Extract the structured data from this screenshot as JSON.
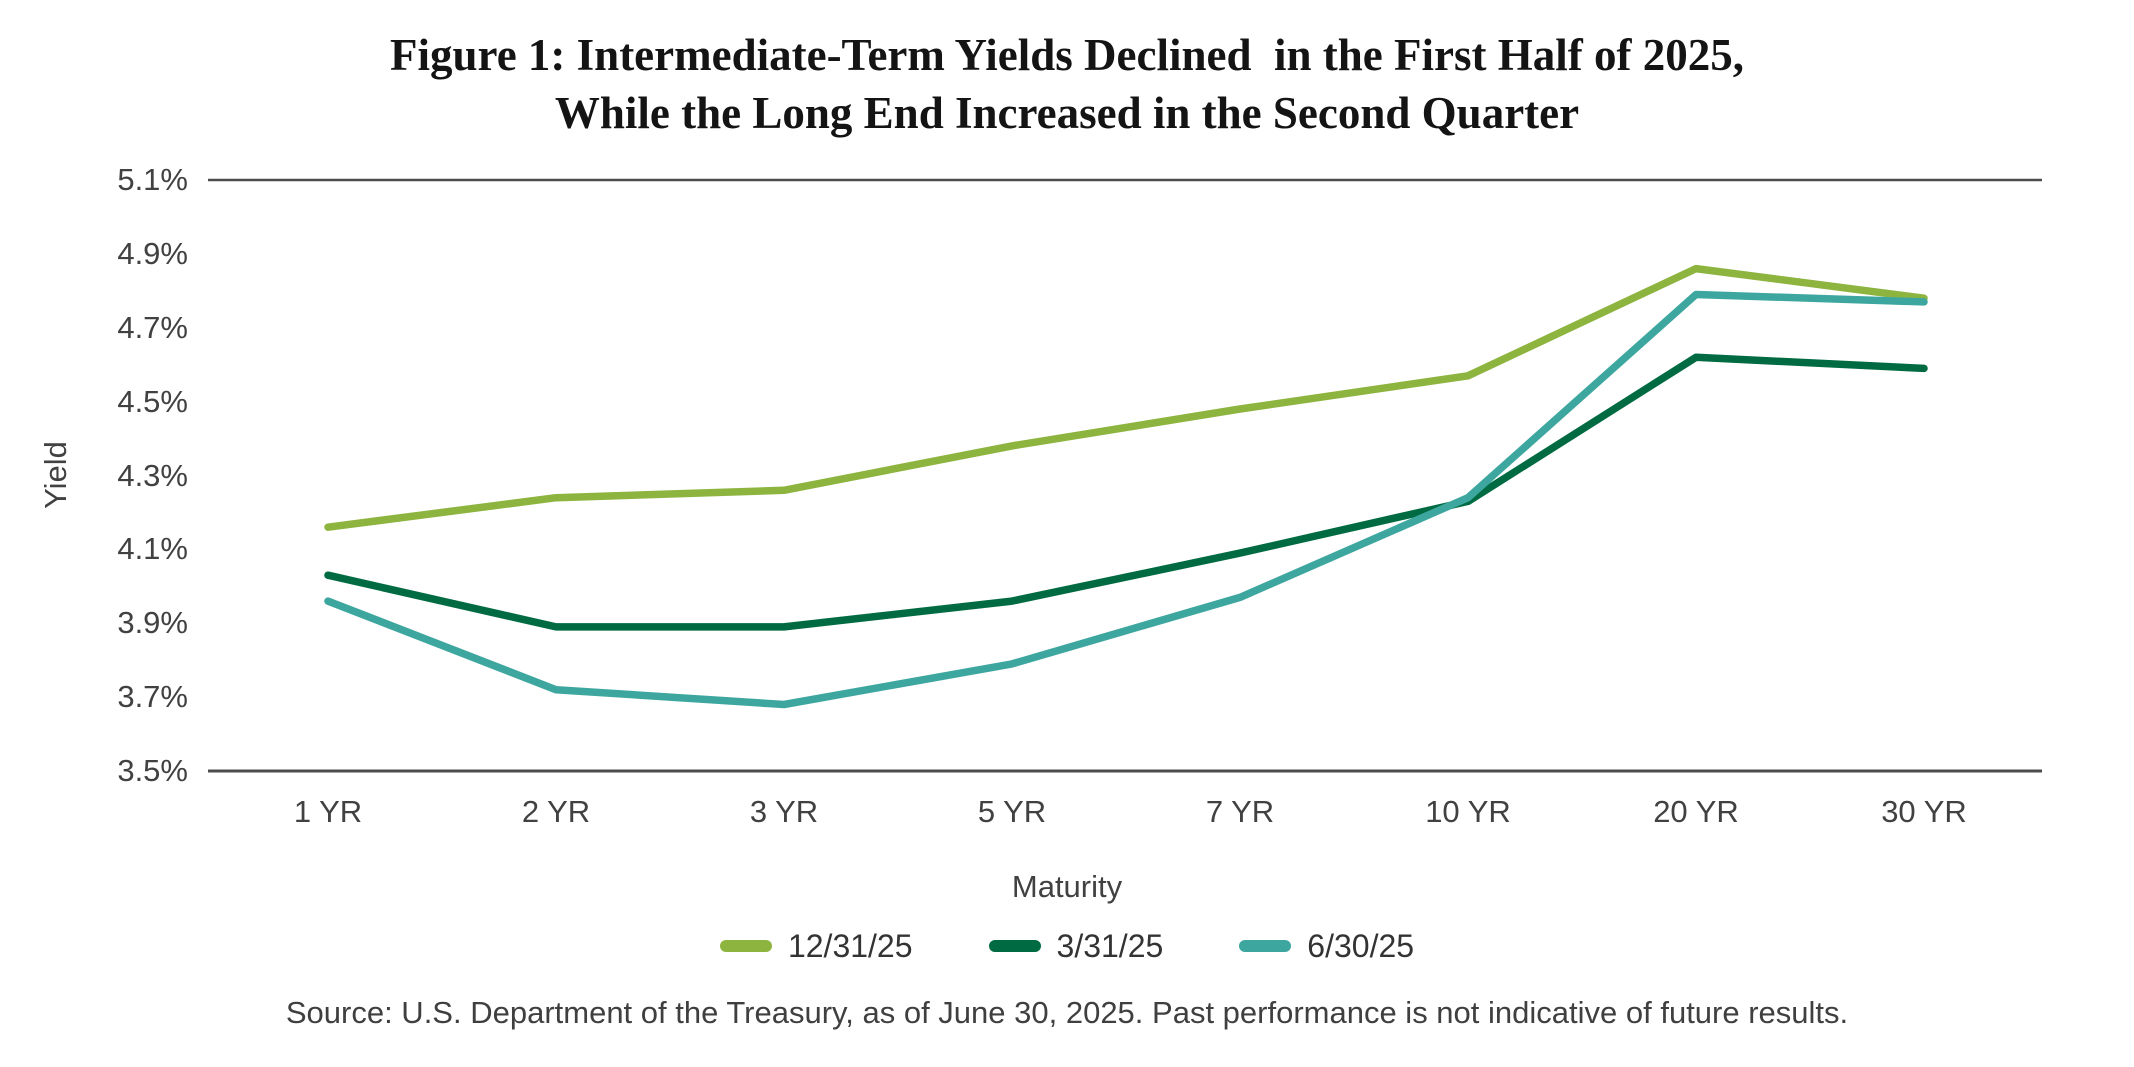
{
  "title": {
    "line1": "Figure 1: Intermediate-Term Yields Declined  in the First Half of 2025,",
    "line2": "While the Long End Increased in the Second Quarter"
  },
  "chart_data": {
    "type": "line",
    "title": "Figure 1: Intermediate-Term Yields Declined in the First Half of 2025, While the Long End Increased in the Second Quarter",
    "categories": [
      "1 YR",
      "2 YR",
      "3 YR",
      "5 YR",
      "7 YR",
      "10 YR",
      "20 YR",
      "30 YR"
    ],
    "series": [
      {
        "name": "12/31/25",
        "color": "#8DB43F",
        "values": [
          4.16,
          4.24,
          4.26,
          4.38,
          4.48,
          4.57,
          4.86,
          4.78
        ]
      },
      {
        "name": "3/31/25",
        "color": "#006B42",
        "values": [
          4.03,
          3.89,
          3.89,
          3.96,
          4.09,
          4.23,
          4.62,
          4.59
        ]
      },
      {
        "name": "6/30/25",
        "color": "#3DA79F",
        "values": [
          3.96,
          3.72,
          3.68,
          3.79,
          3.97,
          4.24,
          4.79,
          4.77
        ]
      }
    ],
    "xlabel": "Maturity",
    "ylabel": "Yield",
    "y_ticks": [
      "5.1%",
      "4.9%",
      "4.7%",
      "4.5%",
      "4.3%",
      "4.1%",
      "3.9%",
      "3.7%",
      "3.5%"
    ],
    "ylim": [
      3.5,
      5.1
    ],
    "y_tick_step": 0.2,
    "grid": "horizontal rule at top (5.1%) and baseline (3.5%) only",
    "legend_position": "bottom"
  },
  "source": "Source: U.S. Department of the Treasury, as of June 30, 2025. Past performance is not indicative of future results.",
  "colors": {
    "axis_line": "#4D4D4D",
    "tick_text": "#414141",
    "title_text": "#141414",
    "source_text": "#3F3F3F"
  }
}
